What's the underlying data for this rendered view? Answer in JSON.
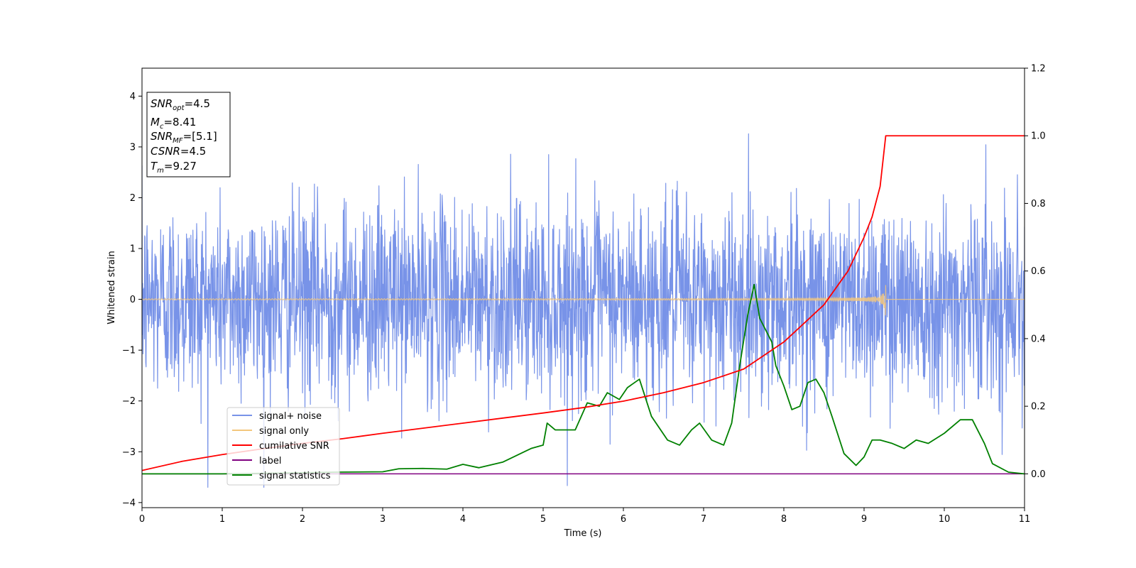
{
  "chart_data": {
    "type": "line",
    "xlabel": "Time (s)",
    "ylabel": "Whitened strain",
    "xlim": [
      0,
      11
    ],
    "ylim_left": [
      -4.1,
      4.55
    ],
    "ylim_right": [
      -0.1,
      1.2
    ],
    "x_ticks": [
      0,
      1,
      2,
      3,
      4,
      5,
      6,
      7,
      8,
      9,
      10,
      11
    ],
    "y_ticks_left": [
      -4,
      -3,
      -2,
      -1,
      0,
      1,
      2,
      3,
      4
    ],
    "y_ticks_right": [
      0.0,
      0.2,
      0.4,
      0.6,
      0.8,
      1.0,
      1.2
    ],
    "grid": false,
    "legend_position": "lower-left",
    "annotations": [
      {
        "base": "SNR",
        "sub": "opt",
        "value": "=4.5"
      },
      {
        "base": "M",
        "sub": "c",
        "value": "=8.41"
      },
      {
        "base": "SNR",
        "sub": "MF",
        "value": "=[5.1]"
      },
      {
        "base": "CSNR",
        "sub": "",
        "value": "=4.5"
      },
      {
        "base": "T",
        "sub": "m",
        "value": "=9.27"
      }
    ],
    "merge_time": 9.27,
    "series": [
      {
        "name": "signal+ noise",
        "color": "#7893e8",
        "axis": "left",
        "kind": "gaussian noise, std≈0.95, peaks ±3.7"
      },
      {
        "name": "signal only",
        "color": "#f3c77c",
        "axis": "left",
        "kind": "chirp, amplitude rising to 0.6 at 9.27 s, 0 after"
      },
      {
        "name": "cumilative SNR",
        "color": "#ff0000",
        "axis": "right",
        "x": [
          0,
          0.5,
          1,
          1.5,
          2,
          2.5,
          3,
          3.5,
          4,
          4.5,
          5,
          5.5,
          6,
          6.5,
          7,
          7.5,
          8,
          8.5,
          8.8,
          9.0,
          9.1,
          9.2,
          9.27,
          11
        ],
        "values": [
          0.01,
          0.037,
          0.057,
          0.074,
          0.09,
          0.104,
          0.12,
          0.135,
          0.15,
          0.165,
          0.18,
          0.196,
          0.215,
          0.24,
          0.27,
          0.31,
          0.39,
          0.5,
          0.6,
          0.7,
          0.76,
          0.85,
          1.0,
          1.0
        ]
      },
      {
        "name": "label",
        "color": "#800080",
        "axis": "right",
        "x": [
          0,
          11
        ],
        "values": [
          0,
          0
        ]
      },
      {
        "name": "signal statistics",
        "color": "#008000",
        "axis": "right",
        "x": [
          0,
          1,
          2,
          2.4,
          3,
          3.2,
          3.5,
          3.8,
          4.0,
          4.2,
          4.5,
          4.7,
          4.85,
          5.0,
          5.05,
          5.15,
          5.4,
          5.55,
          5.7,
          5.8,
          5.95,
          6.05,
          6.2,
          6.35,
          6.55,
          6.7,
          6.85,
          6.95,
          7.1,
          7.25,
          7.35,
          7.45,
          7.55,
          7.63,
          7.7,
          7.85,
          7.9,
          8.0,
          8.1,
          8.2,
          8.3,
          8.4,
          8.5,
          8.6,
          8.75,
          8.9,
          9.0,
          9.1,
          9.2,
          9.35,
          9.5,
          9.65,
          9.8,
          10.0,
          10.2,
          10.35,
          10.5,
          10.6,
          10.8,
          11
        ],
        "values": [
          0,
          0,
          0.003,
          0.005,
          0.006,
          0.015,
          0.016,
          0.014,
          0.028,
          0.018,
          0.035,
          0.058,
          0.075,
          0.085,
          0.15,
          0.13,
          0.13,
          0.21,
          0.2,
          0.24,
          0.22,
          0.255,
          0.28,
          0.17,
          0.1,
          0.085,
          0.13,
          0.15,
          0.1,
          0.085,
          0.15,
          0.32,
          0.47,
          0.56,
          0.46,
          0.39,
          0.32,
          0.26,
          0.19,
          0.2,
          0.27,
          0.28,
          0.24,
          0.17,
          0.06,
          0.025,
          0.05,
          0.1,
          0.1,
          0.09,
          0.075,
          0.1,
          0.09,
          0.12,
          0.16,
          0.16,
          0.09,
          0.03,
          0.005,
          0.0
        ]
      }
    ]
  }
}
